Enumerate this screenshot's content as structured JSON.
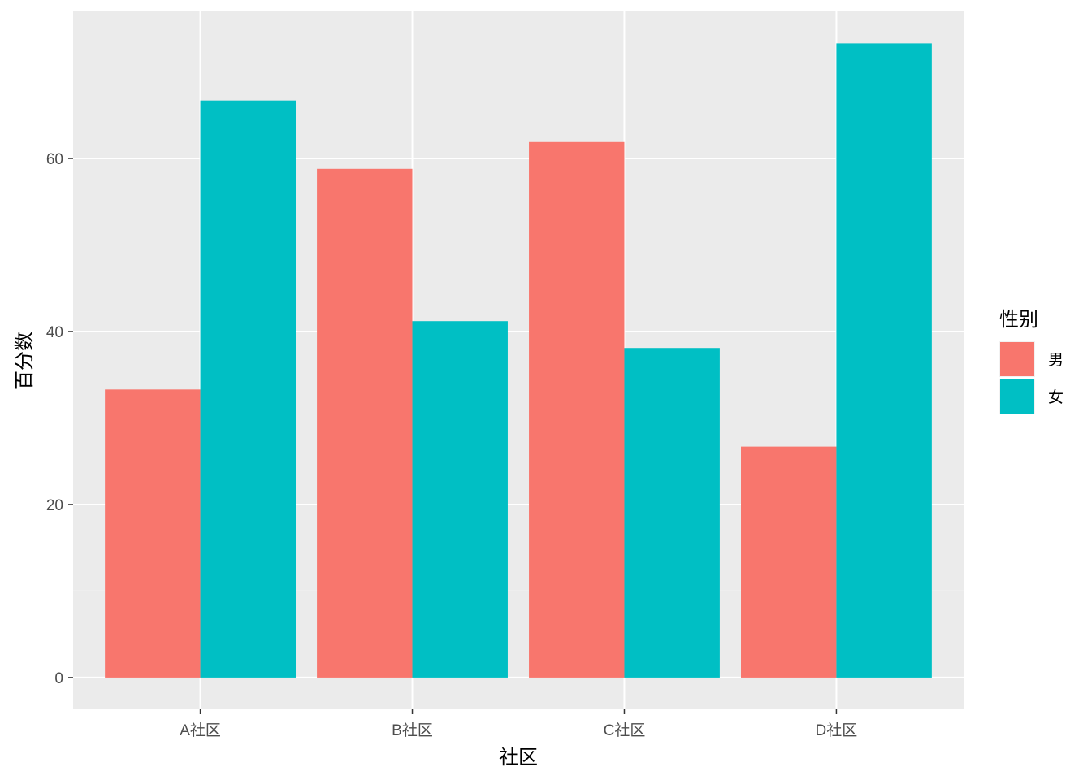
{
  "chart_data": {
    "type": "bar",
    "title": "",
    "xlabel": "社区",
    "ylabel": "百分数",
    "categories": [
      "A社区",
      "B社区",
      "C社区",
      "D社区"
    ],
    "series": [
      {
        "name": "男",
        "values": [
          33.3,
          58.8,
          61.9,
          26.7
        ],
        "color": "#F8766D"
      },
      {
        "name": "女",
        "values": [
          66.7,
          41.2,
          38.1,
          73.3
        ],
        "color": "#00BFC4"
      }
    ],
    "yticks": [
      0,
      20,
      40,
      60
    ],
    "ylim": [
      -3.67,
      77.0
    ],
    "grid": true,
    "legend": {
      "title": "性别",
      "position": "right"
    },
    "colors": {
      "panel_background": "#EBEBEB",
      "gridline": "#FFFFFF",
      "tick_text": "#4D4D4D"
    }
  }
}
